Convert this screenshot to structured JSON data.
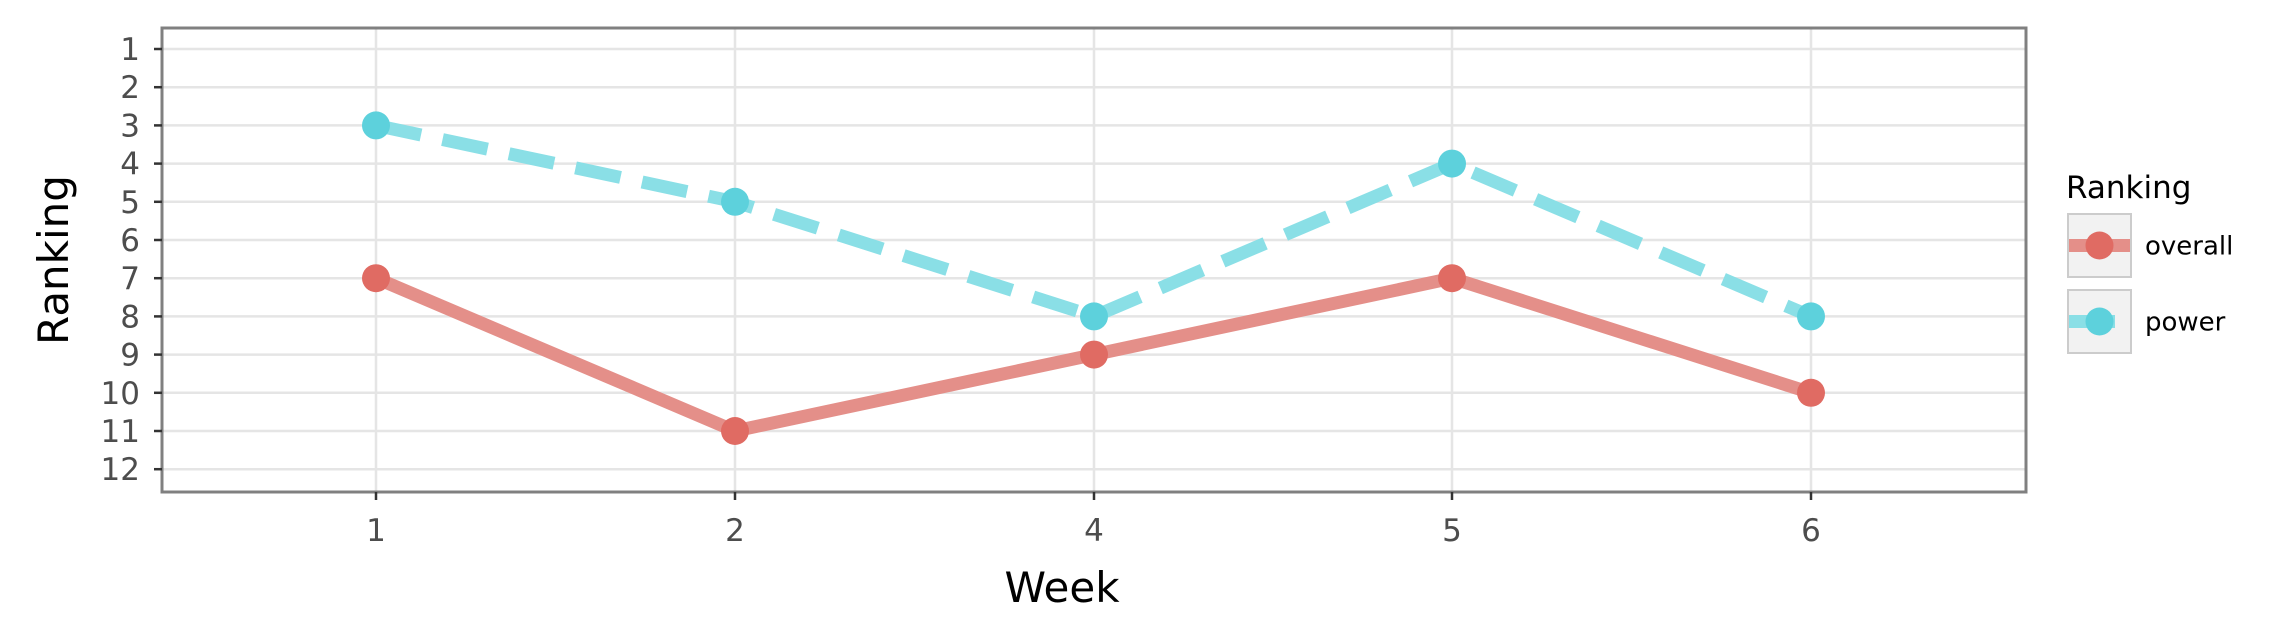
{
  "chart_data": {
    "type": "line",
    "xlabel": "Week",
    "ylabel": "Ranking",
    "categories": [
      "1",
      "2",
      "4",
      "5",
      "6"
    ],
    "y_ticks": [
      "1",
      "2",
      "3",
      "4",
      "5",
      "6",
      "7",
      "8",
      "9",
      "10",
      "11",
      "12"
    ],
    "ylim": [
      1,
      12
    ],
    "y_reversed": true,
    "grid": true,
    "legend": {
      "title": "Ranking",
      "position": "right"
    },
    "series": [
      {
        "name": "overall",
        "values": [
          7,
          11,
          9,
          7,
          10
        ],
        "color": "#e06b63",
        "line_color": "#e48f89",
        "line_style": "solid"
      },
      {
        "name": "power",
        "values": [
          3,
          5,
          8,
          4,
          8
        ],
        "color": "#5dd1dc",
        "line_color": "#8adfe6",
        "line_style": "dashed"
      }
    ]
  },
  "colors": {
    "grid": "#e5e5e5",
    "panel_border": "#808080",
    "legend_key_bg": "#f2f2f2",
    "legend_key_border": "#cccccc"
  }
}
